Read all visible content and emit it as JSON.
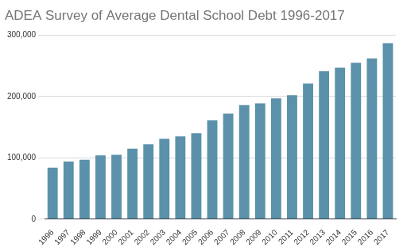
{
  "chart_data": {
    "type": "bar",
    "title": "ADEA Survey of Average Dental School Debt 1996-2017",
    "categories": [
      "1996",
      "1997",
      "1998",
      "1999",
      "2000",
      "2001",
      "2002",
      "2003",
      "2004",
      "2005",
      "2006",
      "2007",
      "2008",
      "2009",
      "2010",
      "2011",
      "2012",
      "2013",
      "2014",
      "2015",
      "2016",
      "2017"
    ],
    "values": [
      84000,
      94000,
      97000,
      104000,
      105000,
      115000,
      122000,
      131000,
      135000,
      140000,
      161000,
      172000,
      186000,
      189000,
      197000,
      202000,
      221000,
      241000,
      247000,
      255000,
      262000,
      287000
    ],
    "color": "#5b91ab",
    "ylim": [
      0,
      300000
    ],
    "yticks": [
      0,
      {
        "value": 100000,
        "label": "100,000"
      },
      {
        "value": 200000,
        "label": "200,000"
      },
      {
        "value": 300000,
        "label": "300,000"
      }
    ],
    "grid": true
  }
}
